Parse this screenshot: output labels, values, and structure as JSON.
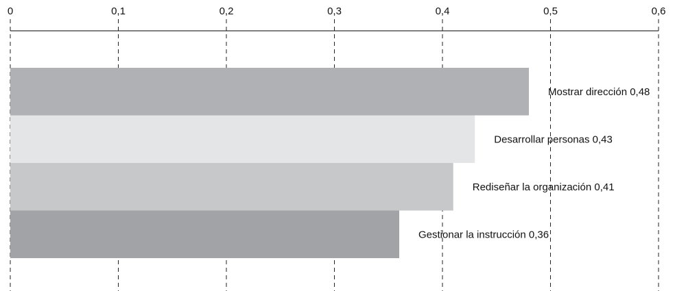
{
  "chart_data": {
    "type": "bar",
    "orientation": "horizontal",
    "xlim": [
      0,
      0.6
    ],
    "x_axis_position": "top",
    "grid": "vertical dashed",
    "tick_labels": [
      "0",
      "0,1",
      "0,2",
      "0,3",
      "0,4",
      "0,5",
      "0,6"
    ],
    "tick_values": [
      0,
      0.1,
      0.2,
      0.3,
      0.4,
      0.5,
      0.6
    ],
    "categories": [
      "Mostrar dirección",
      "Desarrollar personas",
      "Rediseñar la organización",
      "Gestionar la instrucción"
    ],
    "values": [
      0.48,
      0.43,
      0.41,
      0.36
    ],
    "value_labels": [
      "0,48",
      "0,43",
      "0,41",
      "0,36"
    ],
    "bar_labels": [
      "Mostrar dirección 0,48",
      "Desarrollar personas 0,43",
      "Rediseñar la organización 0,41",
      "Gestionar la instrucción 0,36"
    ],
    "colors": [
      "#b0b1b4",
      "#e4e5e7",
      "#c7c8ca",
      "#a2a3a6"
    ]
  }
}
